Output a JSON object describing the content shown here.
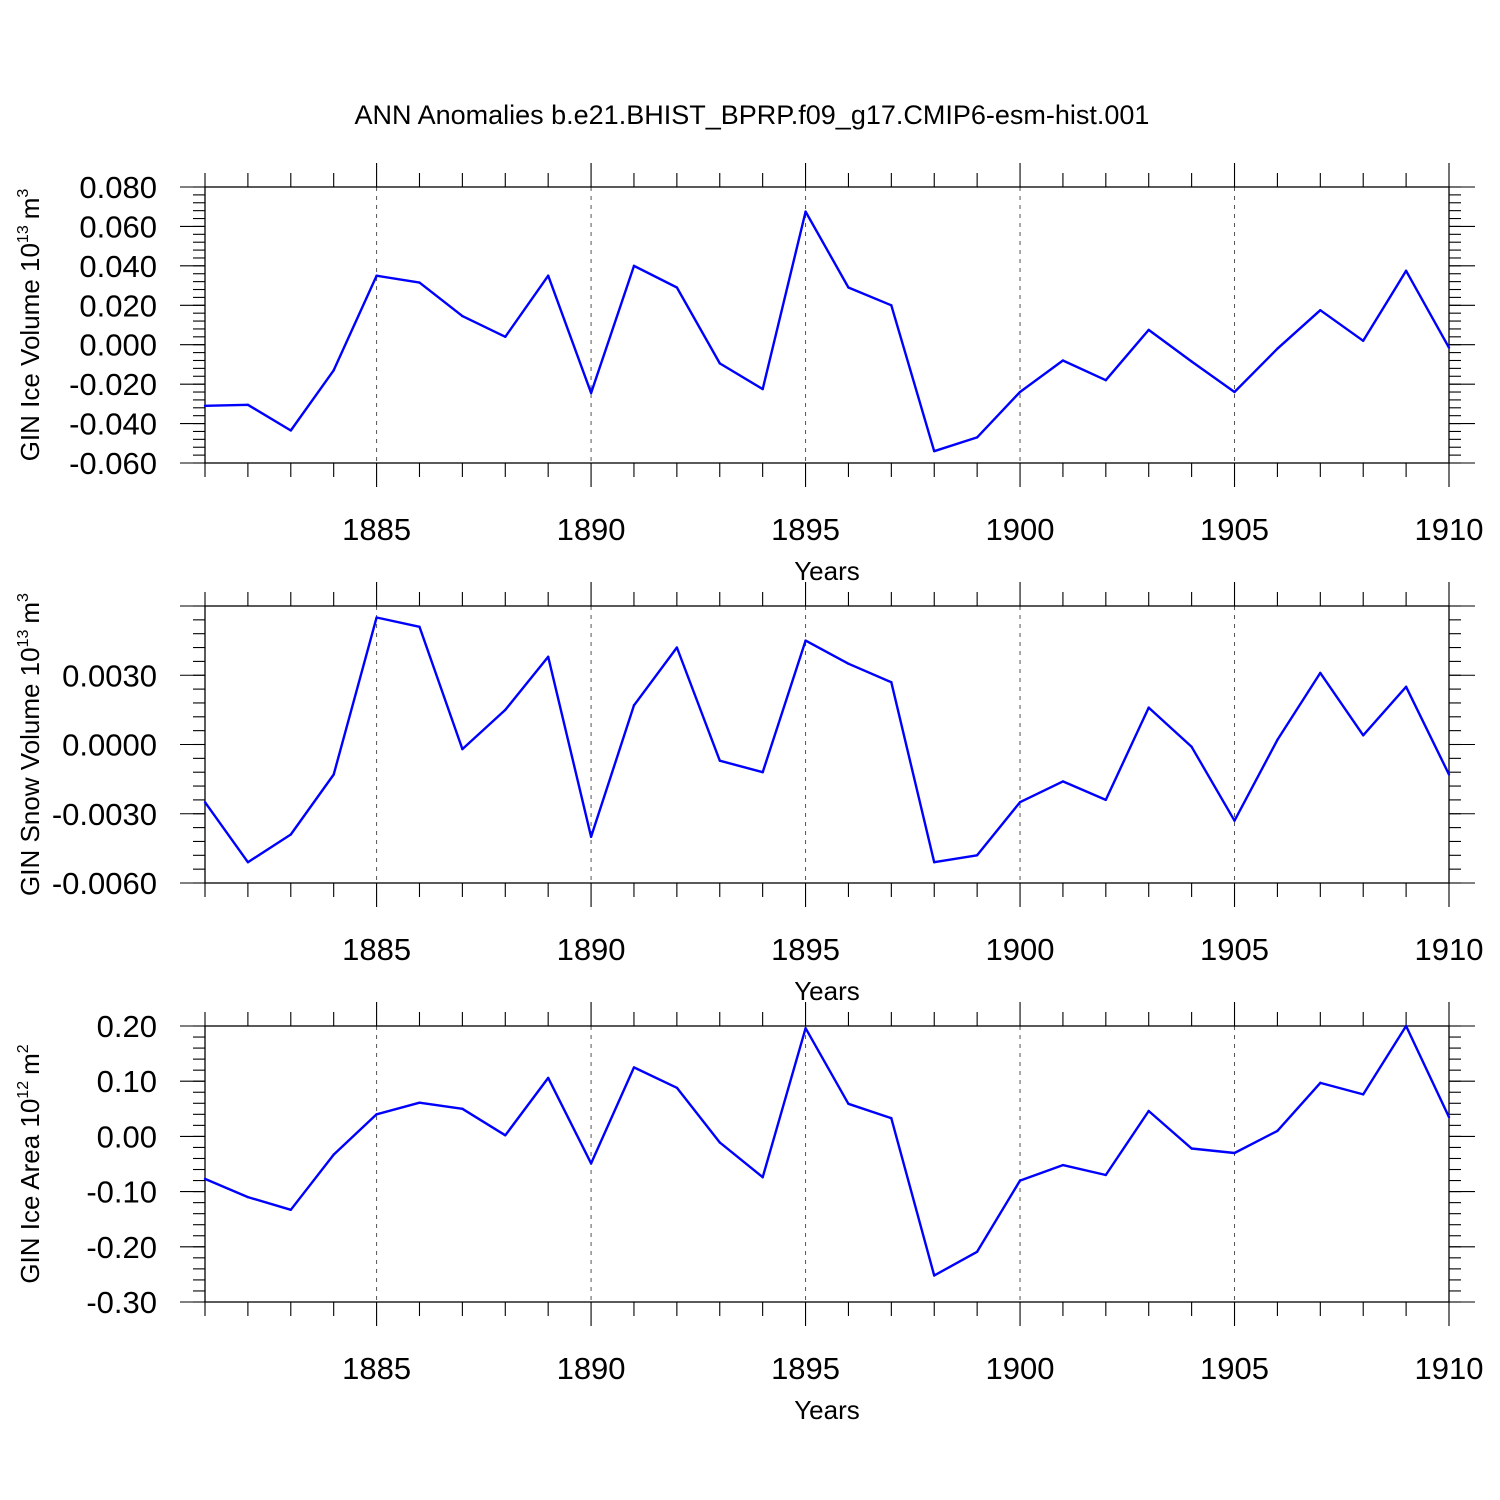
{
  "title": "ANN Anomalies b.e21.BHIST_BPRP.f09_g17.CMIP6-esm-hist.001",
  "colors": {
    "series": "#0000ff",
    "axes": "#000000",
    "grid": "#555555"
  },
  "chart_data": [
    {
      "type": "line",
      "ylabel_main": "GIN Ice Volume 10",
      "ylabel_exp": "13",
      "ylabel_unit": "m",
      "ylabel_unit_exp": "3",
      "xlabel": "Years",
      "xlim": [
        1881,
        1910
      ],
      "ylim": [
        -0.06,
        0.08
      ],
      "xticks": [
        1885,
        1890,
        1895,
        1900,
        1905,
        1910
      ],
      "yticks": [
        -0.06,
        -0.04,
        -0.02,
        0.0,
        0.02,
        0.04,
        0.06,
        0.08
      ],
      "ytick_labels": [
        "-0.060",
        "-0.040",
        "-0.020",
        "0.000",
        "0.020",
        "0.040",
        "0.060",
        "0.080"
      ],
      "grid_x": true,
      "x": [
        1881,
        1882,
        1883,
        1884,
        1885,
        1886,
        1887,
        1888,
        1889,
        1890,
        1891,
        1892,
        1893,
        1894,
        1895,
        1896,
        1897,
        1898,
        1899,
        1900,
        1901,
        1902,
        1903,
        1904,
        1905,
        1906,
        1907,
        1908,
        1909,
        1910
      ],
      "values": [
        -0.031,
        -0.0305,
        -0.0435,
        -0.013,
        0.035,
        0.0315,
        0.0145,
        0.004,
        0.035,
        -0.0245,
        0.04,
        0.029,
        -0.0095,
        -0.0225,
        0.0675,
        0.029,
        0.02,
        -0.054,
        -0.047,
        -0.024,
        -0.008,
        -0.018,
        0.0075,
        -0.0085,
        -0.024,
        -0.002,
        0.0175,
        0.002,
        0.0375,
        -0.0015
      ]
    },
    {
      "type": "line",
      "ylabel_main": "GIN Snow Volume 10",
      "ylabel_exp": "13",
      "ylabel_unit": "m",
      "ylabel_unit_exp": "3",
      "xlabel": "Years",
      "xlim": [
        1881,
        1910
      ],
      "ylim": [
        -0.006,
        0.006
      ],
      "xticks": [
        1885,
        1890,
        1895,
        1900,
        1905,
        1910
      ],
      "yticks": [
        -0.006,
        -0.003,
        0.0,
        0.003
      ],
      "ytick_labels": [
        "-0.0060",
        "-0.0030",
        "0.0000",
        "0.0030"
      ],
      "grid_x": true,
      "x": [
        1881,
        1882,
        1883,
        1884,
        1885,
        1886,
        1887,
        1888,
        1889,
        1890,
        1891,
        1892,
        1893,
        1894,
        1895,
        1896,
        1897,
        1898,
        1899,
        1900,
        1901,
        1902,
        1903,
        1904,
        1905,
        1906,
        1907,
        1908,
        1909,
        1910
      ],
      "values": [
        -0.0025,
        -0.0051,
        -0.0039,
        -0.0013,
        0.0055,
        0.0051,
        -0.0002,
        0.0015,
        0.0038,
        -0.004,
        0.0017,
        0.0042,
        -0.0007,
        -0.0012,
        0.0045,
        0.0035,
        0.0027,
        -0.0051,
        -0.0048,
        -0.0025,
        -0.0016,
        -0.0024,
        0.0016,
        -0.0001,
        -0.0033,
        0.0002,
        0.0031,
        0.0004,
        0.0025,
        -0.0013
      ]
    },
    {
      "type": "line",
      "ylabel_main": "GIN Ice Area 10",
      "ylabel_exp": "12",
      "ylabel_unit": "m",
      "ylabel_unit_exp": "2",
      "xlabel": "Years",
      "xlim": [
        1881,
        1910
      ],
      "ylim": [
        -0.3,
        0.2
      ],
      "xticks": [
        1885,
        1890,
        1895,
        1900,
        1905,
        1910
      ],
      "yticks": [
        -0.3,
        -0.2,
        -0.1,
        0.0,
        0.1,
        0.2
      ],
      "ytick_labels": [
        "-0.30",
        "-0.20",
        "-0.10",
        "0.00",
        "0.10",
        "0.20"
      ],
      "grid_x": true,
      "x": [
        1881,
        1882,
        1883,
        1884,
        1885,
        1886,
        1887,
        1888,
        1889,
        1890,
        1891,
        1892,
        1893,
        1894,
        1895,
        1896,
        1897,
        1898,
        1899,
        1900,
        1901,
        1902,
        1903,
        1904,
        1905,
        1906,
        1907,
        1908,
        1909,
        1910
      ],
      "values": [
        -0.077,
        -0.11,
        -0.133,
        -0.033,
        0.04,
        0.061,
        0.05,
        0.002,
        0.106,
        -0.049,
        0.125,
        0.088,
        -0.011,
        -0.074,
        0.196,
        0.059,
        0.033,
        -0.252,
        -0.209,
        -0.08,
        -0.052,
        -0.07,
        0.046,
        -0.022,
        -0.03,
        0.01,
        0.097,
        0.076,
        0.2,
        0.035
      ]
    }
  ]
}
